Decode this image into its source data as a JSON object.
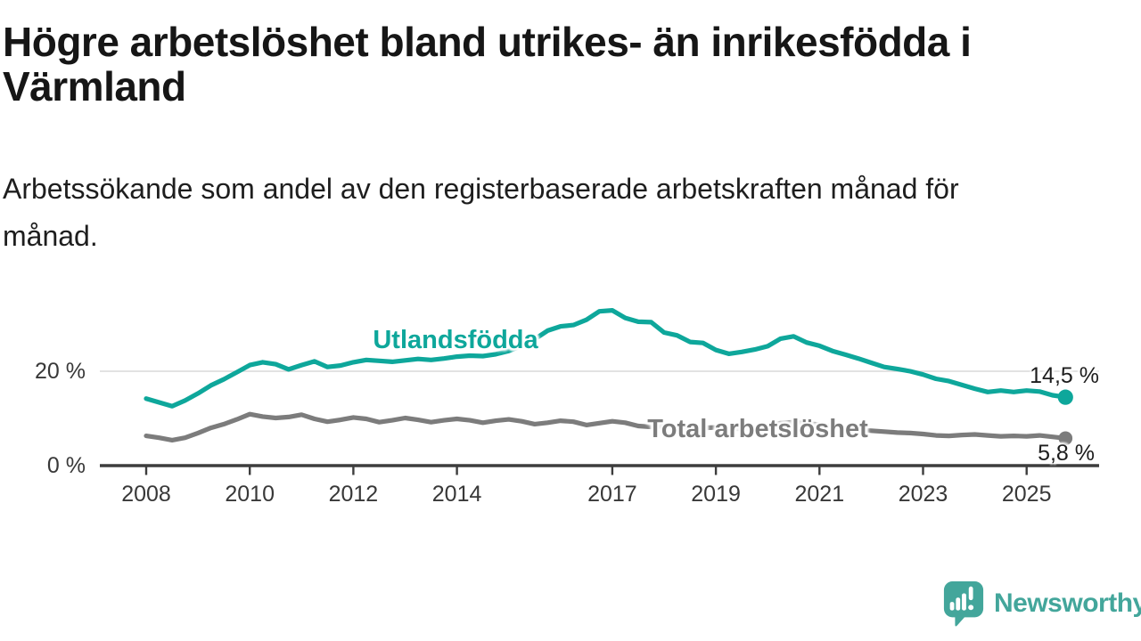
{
  "header": {
    "title": "Högre arbetslöshet bland utrikes- än inrikesfödda i\nVärmland",
    "subtitle": "Arbetssökande som andel av den registerbaserade arbetskraften månad för\nmånad."
  },
  "chart_data": {
    "type": "line",
    "title": "Högre arbetslöshet bland utrikes- än inrikesfödda i Värmland",
    "subtitle": "Arbetssökande som andel av den registerbaserade arbetskraften månad för månad.",
    "unit": "%",
    "grid": "single-horizontal-gridline-at-20",
    "legend_position": "inline-labels-on-lines",
    "x_axis": {
      "range": [
        2007.1,
        2026.4
      ],
      "ticks": [
        2008,
        2010,
        2012,
        2014,
        2017,
        2019,
        2021,
        2023,
        2025
      ]
    },
    "y_axis": {
      "range": [
        0,
        38
      ],
      "ticks": [
        {
          "value": 0,
          "label": "0 %",
          "gridline": false
        },
        {
          "value": 20,
          "label": "20 %",
          "gridline": true
        }
      ]
    },
    "x": [
      2008.0,
      2008.25,
      2008.5,
      2008.75,
      2009.0,
      2009.25,
      2009.5,
      2009.75,
      2010.0,
      2010.25,
      2010.5,
      2010.75,
      2011.0,
      2011.25,
      2011.5,
      2011.75,
      2012.0,
      2012.25,
      2012.5,
      2012.75,
      2013.0,
      2013.25,
      2013.5,
      2013.75,
      2014.0,
      2014.25,
      2014.5,
      2014.75,
      2015.0,
      2015.25,
      2015.5,
      2015.75,
      2016.0,
      2016.25,
      2016.5,
      2016.75,
      2017.0,
      2017.25,
      2017.5,
      2017.75,
      2018.0,
      2018.25,
      2018.5,
      2018.75,
      2019.0,
      2019.25,
      2019.5,
      2019.75,
      2020.0,
      2020.25,
      2020.5,
      2020.75,
      2021.0,
      2021.25,
      2021.5,
      2021.75,
      2022.0,
      2022.25,
      2022.5,
      2022.75,
      2023.0,
      2023.25,
      2023.5,
      2023.75,
      2024.0,
      2024.25,
      2024.5,
      2024.75,
      2025.0,
      2025.25,
      2025.5,
      2025.75
    ],
    "series": [
      {
        "name": "Utlandsfödda",
        "color": "#0ea79b",
        "end_label": "14,5 %",
        "end_value": 14.5,
        "values": [
          14.2,
          13.4,
          12.6,
          13.8,
          15.3,
          17.0,
          18.3,
          19.8,
          21.3,
          21.9,
          21.5,
          20.4,
          21.3,
          22.1,
          20.9,
          21.2,
          21.9,
          22.4,
          22.2,
          22.0,
          22.3,
          22.6,
          22.4,
          22.7,
          23.1,
          23.3,
          23.2,
          23.6,
          24.3,
          25.4,
          26.8,
          28.6,
          29.5,
          29.8,
          30.9,
          32.7,
          32.9,
          31.3,
          30.5,
          30.4,
          28.2,
          27.6,
          26.2,
          26.0,
          24.5,
          23.7,
          24.1,
          24.6,
          25.3,
          26.9,
          27.4,
          26.1,
          25.4,
          24.3,
          23.5,
          22.7,
          21.8,
          20.9,
          20.5,
          20.0,
          19.3,
          18.4,
          17.9,
          17.1,
          16.3,
          15.6,
          15.9,
          15.6,
          15.9,
          15.7,
          14.9,
          14.5
        ]
      },
      {
        "name": "Total arbetslöshet",
        "color": "#7c7c7c",
        "end_label": "5,8 %",
        "end_value": 5.8,
        "values": [
          6.3,
          5.9,
          5.4,
          5.9,
          6.9,
          8.0,
          8.8,
          9.8,
          10.9,
          10.4,
          10.1,
          10.3,
          10.8,
          9.9,
          9.3,
          9.7,
          10.2,
          9.9,
          9.2,
          9.6,
          10.1,
          9.7,
          9.2,
          9.6,
          9.9,
          9.6,
          9.1,
          9.5,
          9.8,
          9.4,
          8.8,
          9.1,
          9.5,
          9.3,
          8.6,
          9.0,
          9.4,
          9.1,
          8.4,
          8.2,
          8.4,
          8.2,
          7.9,
          8.0,
          8.1,
          7.9,
          7.8,
          8.0,
          8.3,
          9.0,
          9.2,
          8.9,
          8.7,
          8.3,
          7.9,
          7.6,
          7.4,
          7.2,
          7.0,
          6.9,
          6.7,
          6.4,
          6.3,
          6.5,
          6.6,
          6.4,
          6.2,
          6.3,
          6.2,
          6.4,
          6.1,
          5.8
        ]
      }
    ]
  },
  "branding": {
    "logo_text": "Newsworthy",
    "logo_color": "#43a69b"
  }
}
